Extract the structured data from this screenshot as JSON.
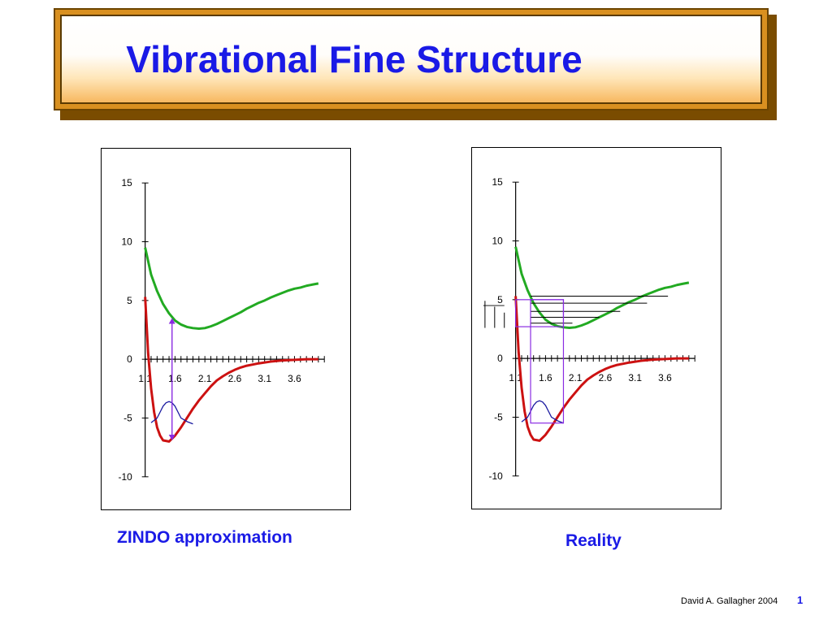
{
  "slide": {
    "title": "Vibrational Fine Structure",
    "footer_credit": "David A. Gallagher 2004",
    "page_number": "1"
  },
  "colors": {
    "title_text": "#1a1ae6",
    "frame_fill": "#d99020",
    "ground_curve": "#cc1111",
    "excited_curve": "#22aa22",
    "wavefunction": "#1a1aa0",
    "transition_arrow": "#8a2be2",
    "vibrational_levels": "#000000"
  },
  "chart_data": [
    {
      "type": "line",
      "caption": "ZINDO approximation",
      "ylim": [
        -10,
        15
      ],
      "y_ticks": [
        "15",
        "10",
        "5",
        "0",
        "-5",
        "-10"
      ],
      "x_ticks": [
        "1.1",
        "1.6",
        "2.1",
        "2.6",
        "3.1",
        "3.6"
      ],
      "xlim": [
        1.1,
        4.1
      ],
      "series": [
        {
          "role": "excited-state",
          "color": "#22aa22",
          "x": [
            1.1,
            1.2,
            1.3,
            1.4,
            1.5,
            1.6,
            1.7,
            1.8,
            1.9,
            2.0,
            2.1,
            2.2,
            2.3,
            2.4,
            2.5,
            2.6,
            2.7,
            2.8,
            2.9,
            3.0,
            3.1,
            3.2,
            3.3,
            3.4,
            3.5,
            3.6,
            3.7,
            3.8,
            3.9,
            4.0
          ],
          "y": [
            9.5,
            7.2,
            5.8,
            4.7,
            3.9,
            3.3,
            2.95,
            2.75,
            2.65,
            2.6,
            2.65,
            2.8,
            3.0,
            3.25,
            3.5,
            3.75,
            4.0,
            4.3,
            4.55,
            4.8,
            5.0,
            5.25,
            5.45,
            5.65,
            5.85,
            6.0,
            6.1,
            6.25,
            6.35,
            6.45
          ]
        },
        {
          "role": "ground-state",
          "color": "#cc1111",
          "x": [
            1.1,
            1.15,
            1.2,
            1.25,
            1.3,
            1.35,
            1.4,
            1.5,
            1.6,
            1.7,
            1.8,
            1.9,
            2.0,
            2.1,
            2.2,
            2.3,
            2.4,
            2.5,
            2.6,
            2.7,
            2.8,
            2.9,
            3.0,
            3.2,
            3.4,
            3.6,
            3.8,
            4.0
          ],
          "y": [
            5.3,
            0.5,
            -2.5,
            -4.5,
            -5.8,
            -6.5,
            -6.9,
            -7.0,
            -6.5,
            -5.8,
            -5.0,
            -4.2,
            -3.5,
            -2.9,
            -2.3,
            -1.8,
            -1.45,
            -1.15,
            -0.9,
            -0.7,
            -0.55,
            -0.45,
            -0.35,
            -0.2,
            -0.1,
            -0.05,
            0.0,
            0.0
          ]
        },
        {
          "role": "wavefunction",
          "color": "#1a1aa0",
          "x": [
            1.2,
            1.3,
            1.35,
            1.4,
            1.45,
            1.5,
            1.55,
            1.6,
            1.65,
            1.7,
            1.8,
            1.9
          ],
          "y": [
            -5.4,
            -5.0,
            -4.5,
            -4.0,
            -3.7,
            -3.6,
            -3.7,
            -4.0,
            -4.5,
            -5.0,
            -5.3,
            -5.5
          ]
        }
      ],
      "transition_arrow": {
        "x": 1.55,
        "y_from": -6.9,
        "y_to": 3.5,
        "color": "#8a2be2"
      }
    },
    {
      "type": "line",
      "caption": "Reality",
      "ylim": [
        -10,
        15
      ],
      "y_ticks": [
        "15",
        "10",
        "5",
        "0",
        "-5",
        "-10"
      ],
      "x_ticks": [
        "1.1",
        "1.6",
        "2.1",
        "2.6",
        "3.1",
        "3.6"
      ],
      "xlim": [
        1.1,
        4.1
      ],
      "series": [
        {
          "role": "excited-state",
          "color": "#22aa22",
          "x": [
            1.1,
            1.2,
            1.3,
            1.4,
            1.5,
            1.6,
            1.7,
            1.8,
            1.9,
            2.0,
            2.1,
            2.2,
            2.3,
            2.4,
            2.5,
            2.6,
            2.7,
            2.8,
            2.9,
            3.0,
            3.1,
            3.2,
            3.3,
            3.4,
            3.5,
            3.6,
            3.7,
            3.8,
            3.9,
            4.0
          ],
          "y": [
            9.5,
            7.2,
            5.8,
            4.7,
            3.9,
            3.3,
            2.95,
            2.75,
            2.65,
            2.6,
            2.65,
            2.8,
            3.0,
            3.25,
            3.5,
            3.75,
            4.0,
            4.3,
            4.55,
            4.8,
            5.0,
            5.25,
            5.45,
            5.65,
            5.85,
            6.0,
            6.1,
            6.25,
            6.35,
            6.45
          ]
        },
        {
          "role": "ground-state",
          "color": "#cc1111",
          "x": [
            1.1,
            1.15,
            1.2,
            1.25,
            1.3,
            1.35,
            1.4,
            1.5,
            1.6,
            1.7,
            1.8,
            1.9,
            2.0,
            2.1,
            2.2,
            2.3,
            2.4,
            2.5,
            2.6,
            2.7,
            2.8,
            2.9,
            3.0,
            3.2,
            3.4,
            3.6,
            3.8,
            4.0
          ],
          "y": [
            5.3,
            0.5,
            -2.5,
            -4.5,
            -5.8,
            -6.5,
            -6.9,
            -7.0,
            -6.5,
            -5.8,
            -5.0,
            -4.2,
            -3.5,
            -2.9,
            -2.3,
            -1.8,
            -1.45,
            -1.15,
            -0.9,
            -0.7,
            -0.55,
            -0.45,
            -0.35,
            -0.2,
            -0.1,
            -0.05,
            0.0,
            0.0
          ]
        },
        {
          "role": "wavefunction",
          "color": "#1a1aa0",
          "x": [
            1.2,
            1.3,
            1.35,
            1.4,
            1.45,
            1.5,
            1.55,
            1.6,
            1.65,
            1.7,
            1.8,
            1.9
          ],
          "y": [
            -5.4,
            -5.0,
            -4.5,
            -4.0,
            -3.7,
            -3.6,
            -3.7,
            -4.0,
            -4.5,
            -5.0,
            -5.3,
            -5.5
          ]
        }
      ],
      "vibrational_levels": [
        {
          "y": 5.3,
          "x_from": 1.35,
          "x_to": 3.65
        },
        {
          "y": 4.7,
          "x_from": 1.35,
          "x_to": 3.3
        },
        {
          "y": 4.0,
          "x_from": 1.35,
          "x_to": 2.85
        },
        {
          "y": 3.5,
          "x_from": 1.35,
          "x_to": 2.5
        },
        {
          "y": 3.0,
          "x_from": 1.35,
          "x_to": 2.05
        }
      ],
      "transition_boxes": [
        {
          "x_from": 1.1,
          "x_to": 1.9,
          "y_from": 2.7,
          "y_to": 5.0
        },
        {
          "x_from": 1.35,
          "x_to": 1.9,
          "y_from": -5.5,
          "y_to": 5.0
        }
      ],
      "spectrum_lines": [
        {
          "y_from": 2.6,
          "y_to": 4.9
        },
        {
          "y_from": 2.6,
          "y_to": 4.4
        },
        {
          "y_from": 2.6,
          "y_to": 3.9
        }
      ],
      "transition_color": "#8a2be2"
    }
  ]
}
